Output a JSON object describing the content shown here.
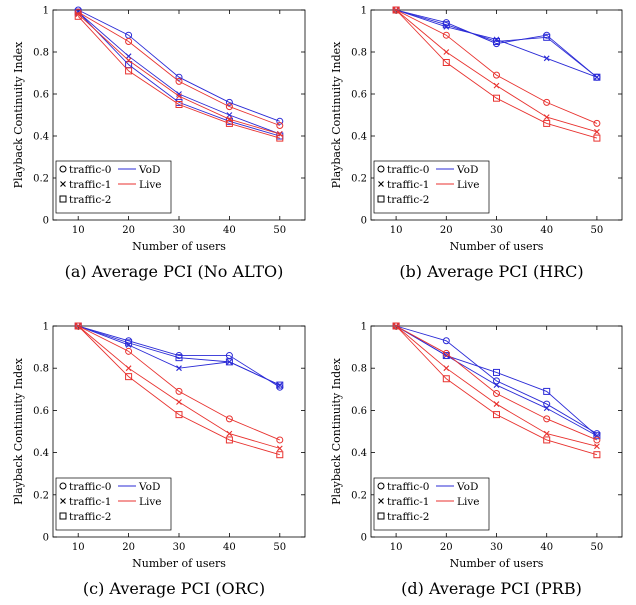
{
  "chart_data": [
    {
      "type": "line",
      "caption": "(a) Average PCI (No ALTO)",
      "xlabel": "Number of users",
      "ylabel": "Playback Continuity Index",
      "x": [
        10,
        20,
        30,
        40,
        50
      ],
      "xticks": [
        "10",
        "20",
        "30",
        "40",
        "50"
      ],
      "yticks": [
        "0",
        "0.2",
        "0.4",
        "0.6",
        "0.8",
        "1"
      ],
      "xlim": [
        5,
        55
      ],
      "ylim": [
        0,
        1
      ],
      "legend": {
        "position": "bottom-left",
        "markers": [
          "traffic-0",
          "traffic-1",
          "traffic-2"
        ],
        "lines": [
          "VoD",
          "Live"
        ]
      },
      "series": [
        {
          "name": "VoD traffic-0",
          "group": "VoD",
          "marker": "circle",
          "values": [
            1.0,
            0.88,
            0.68,
            0.56,
            0.47
          ]
        },
        {
          "name": "VoD traffic-1",
          "group": "VoD",
          "marker": "cross",
          "values": [
            0.99,
            0.78,
            0.6,
            0.5,
            0.41
          ]
        },
        {
          "name": "VoD traffic-2",
          "group": "VoD",
          "marker": "square",
          "values": [
            0.99,
            0.74,
            0.56,
            0.47,
            0.4
          ]
        },
        {
          "name": "Live traffic-0",
          "group": "Live",
          "marker": "circle",
          "values": [
            0.99,
            0.85,
            0.66,
            0.54,
            0.45
          ]
        },
        {
          "name": "Live traffic-1",
          "group": "Live",
          "marker": "cross",
          "values": [
            0.98,
            0.76,
            0.59,
            0.48,
            0.41
          ]
        },
        {
          "name": "Live traffic-2",
          "group": "Live",
          "marker": "square",
          "values": [
            0.97,
            0.71,
            0.55,
            0.46,
            0.39
          ]
        }
      ]
    },
    {
      "type": "line",
      "caption": "(b) Average PCI (HRC)",
      "xlabel": "Number of users",
      "ylabel": "Playback Continuity Index",
      "x": [
        10,
        20,
        30,
        40,
        50
      ],
      "xticks": [
        "10",
        "20",
        "30",
        "40",
        "50"
      ],
      "yticks": [
        "0",
        "0.2",
        "0.4",
        "0.6",
        "0.8",
        "1"
      ],
      "xlim": [
        5,
        55
      ],
      "ylim": [
        0,
        1
      ],
      "legend": {
        "position": "bottom-left",
        "markers": [
          "traffic-0",
          "traffic-1",
          "traffic-2"
        ],
        "lines": [
          "VoD",
          "Live"
        ]
      },
      "series": [
        {
          "name": "VoD traffic-0",
          "group": "VoD",
          "marker": "circle",
          "values": [
            1.0,
            0.94,
            0.84,
            0.88,
            0.68
          ]
        },
        {
          "name": "VoD traffic-1",
          "group": "VoD",
          "marker": "cross",
          "values": [
            1.0,
            0.92,
            0.86,
            0.77,
            0.68
          ]
        },
        {
          "name": "VoD traffic-2",
          "group": "VoD",
          "marker": "square",
          "values": [
            1.0,
            0.93,
            0.85,
            0.87,
            0.68
          ]
        },
        {
          "name": "Live traffic-0",
          "group": "Live",
          "marker": "circle",
          "values": [
            1.0,
            0.88,
            0.69,
            0.56,
            0.46
          ]
        },
        {
          "name": "Live traffic-1",
          "group": "Live",
          "marker": "cross",
          "values": [
            1.0,
            0.8,
            0.64,
            0.49,
            0.42
          ]
        },
        {
          "name": "Live traffic-2",
          "group": "Live",
          "marker": "square",
          "values": [
            1.0,
            0.75,
            0.58,
            0.46,
            0.39
          ]
        }
      ]
    },
    {
      "type": "line",
      "caption": "(c) Average PCI (ORC)",
      "xlabel": "Number of users",
      "ylabel": "Playback Continuity Index",
      "x": [
        10,
        20,
        30,
        40,
        50
      ],
      "xticks": [
        "10",
        "20",
        "30",
        "40",
        "50"
      ],
      "yticks": [
        "0",
        "0.2",
        "0.4",
        "0.6",
        "0.8",
        "1"
      ],
      "xlim": [
        5,
        55
      ],
      "ylim": [
        0,
        1
      ],
      "legend": {
        "position": "bottom-left",
        "markers": [
          "traffic-0",
          "traffic-1",
          "traffic-2"
        ],
        "lines": [
          "VoD",
          "Live"
        ]
      },
      "series": [
        {
          "name": "VoD traffic-0",
          "group": "VoD",
          "marker": "circle",
          "values": [
            1.0,
            0.93,
            0.86,
            0.86,
            0.71
          ]
        },
        {
          "name": "VoD traffic-1",
          "group": "VoD",
          "marker": "cross",
          "values": [
            1.0,
            0.91,
            0.8,
            0.83,
            0.72
          ]
        },
        {
          "name": "VoD traffic-2",
          "group": "VoD",
          "marker": "square",
          "values": [
            1.0,
            0.92,
            0.85,
            0.83,
            0.72
          ]
        },
        {
          "name": "Live traffic-0",
          "group": "Live",
          "marker": "circle",
          "values": [
            1.0,
            0.88,
            0.69,
            0.56,
            0.46
          ]
        },
        {
          "name": "Live traffic-1",
          "group": "Live",
          "marker": "cross",
          "values": [
            1.0,
            0.8,
            0.64,
            0.49,
            0.42
          ]
        },
        {
          "name": "Live traffic-2",
          "group": "Live",
          "marker": "square",
          "values": [
            1.0,
            0.76,
            0.58,
            0.46,
            0.39
          ]
        }
      ]
    },
    {
      "type": "line",
      "caption": "(d) Average PCI (PRB)",
      "xlabel": "Number of users",
      "ylabel": "Playback Continuity Index",
      "x": [
        10,
        20,
        30,
        40,
        50
      ],
      "xticks": [
        "10",
        "20",
        "30",
        "40",
        "50"
      ],
      "yticks": [
        "0",
        "0.2",
        "0.4",
        "0.6",
        "0.8",
        "1"
      ],
      "xlim": [
        5,
        55
      ],
      "ylim": [
        0,
        1
      ],
      "legend": {
        "position": "bottom-left",
        "markers": [
          "traffic-0",
          "traffic-1",
          "traffic-2"
        ],
        "lines": [
          "VoD",
          "Live"
        ]
      },
      "series": [
        {
          "name": "VoD traffic-0",
          "group": "VoD",
          "marker": "circle",
          "values": [
            1.0,
            0.93,
            0.74,
            0.63,
            0.49
          ]
        },
        {
          "name": "VoD traffic-1",
          "group": "VoD",
          "marker": "cross",
          "values": [
            1.0,
            0.86,
            0.72,
            0.61,
            0.48
          ]
        },
        {
          "name": "VoD traffic-2",
          "group": "VoD",
          "marker": "square",
          "values": [
            1.0,
            0.86,
            0.78,
            0.69,
            0.48
          ]
        },
        {
          "name": "Live traffic-0",
          "group": "Live",
          "marker": "circle",
          "values": [
            1.0,
            0.87,
            0.68,
            0.56,
            0.46
          ]
        },
        {
          "name": "Live traffic-1",
          "group": "Live",
          "marker": "cross",
          "values": [
            1.0,
            0.8,
            0.63,
            0.49,
            0.43
          ]
        },
        {
          "name": "Live traffic-2",
          "group": "Live",
          "marker": "square",
          "values": [
            1.0,
            0.75,
            0.58,
            0.46,
            0.39
          ]
        }
      ]
    }
  ],
  "colors": {
    "VoD": "#2b2bd6",
    "Live": "#e8322f",
    "axis": "#000000"
  }
}
